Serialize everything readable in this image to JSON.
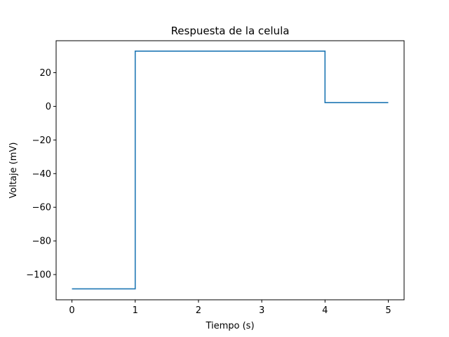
{
  "chart_data": {
    "type": "line",
    "title": "Respuesta de la celula",
    "xlabel": "Tiempo (s)",
    "ylabel": "Voltaje (mV)",
    "xlim": [
      -0.25,
      5.25
    ],
    "ylim": [
      -115,
      39
    ],
    "x_ticks": [
      0,
      1,
      2,
      3,
      4,
      5
    ],
    "x_tick_labels": [
      "0",
      "1",
      "2",
      "3",
      "4",
      "5"
    ],
    "y_ticks": [
      -100,
      -80,
      -60,
      -40,
      -20,
      0,
      20
    ],
    "y_tick_labels": [
      "−100",
      "−80",
      "−60",
      "−40",
      "−20",
      "0",
      "20"
    ],
    "grid": false,
    "series": [
      {
        "color": "#1f77b4",
        "x": [
          0,
          1,
          1,
          4,
          4,
          5
        ],
        "y": [
          -108.5,
          -108.5,
          32.8,
          32.8,
          2.2,
          2.2
        ]
      }
    ]
  }
}
